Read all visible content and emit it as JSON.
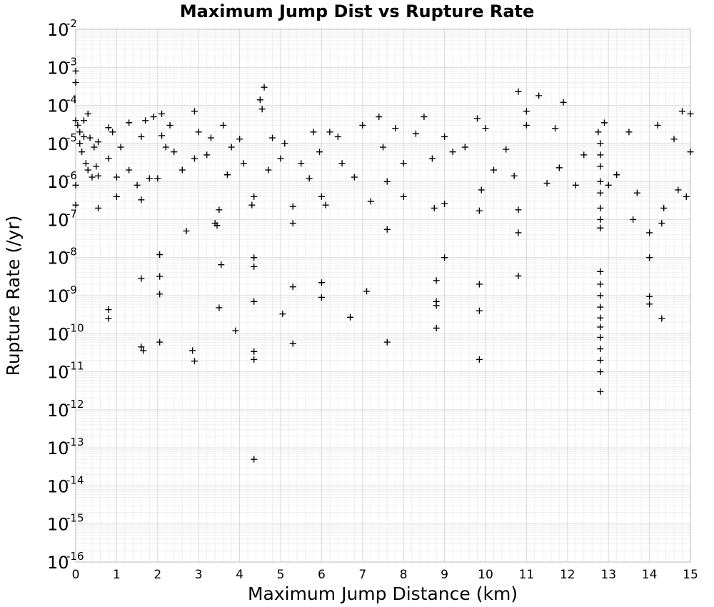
{
  "chart_data": {
    "type": "scatter",
    "title": "Maximum Jump Dist vs Rupture Rate",
    "xlabel": "Maximum Jump Distance (km)",
    "ylabel": "Rupture Rate (/yr)",
    "xlim": [
      0,
      15
    ],
    "ylim": [
      1e-16,
      0.01
    ],
    "yscale": "log",
    "grid": true,
    "marker": "plus",
    "xticks": [
      "0",
      "1",
      "2",
      "3",
      "4",
      "5",
      "6",
      "7",
      "8",
      "9",
      "10",
      "11",
      "12",
      "13",
      "14",
      "15"
    ],
    "yticks": [
      {
        "base": "10",
        "exp": "-2"
      },
      {
        "base": "10",
        "exp": "-3"
      },
      {
        "base": "10",
        "exp": "-4"
      },
      {
        "base": "10",
        "exp": "-5"
      },
      {
        "base": "10",
        "exp": "-6"
      },
      {
        "base": "10",
        "exp": "-7"
      },
      {
        "base": "10",
        "exp": "-8"
      },
      {
        "base": "10",
        "exp": "-9"
      },
      {
        "base": "10",
        "exp": "-10"
      },
      {
        "base": "10",
        "exp": "-11"
      },
      {
        "base": "10",
        "exp": "-12"
      },
      {
        "base": "10",
        "exp": "-13"
      },
      {
        "base": "10",
        "exp": "-14"
      },
      {
        "base": "10",
        "exp": "-15"
      },
      {
        "base": "10",
        "exp": "-16"
      }
    ],
    "points": [
      [
        0.0,
        0.0004
      ],
      [
        0.0,
        0.0008
      ],
      [
        0.0,
        4e-05
      ],
      [
        0.0,
        2.4e-07
      ],
      [
        0.0,
        8e-07
      ],
      [
        0.05,
        3e-05
      ],
      [
        0.1,
        2e-05
      ],
      [
        0.1,
        1e-05
      ],
      [
        0.15,
        6e-06
      ],
      [
        0.2,
        4e-05
      ],
      [
        0.2,
        1.5e-05
      ],
      [
        0.25,
        3e-06
      ],
      [
        0.3,
        6e-05
      ],
      [
        0.3,
        2e-06
      ],
      [
        0.35,
        1.4e-05
      ],
      [
        0.4,
        1.3e-06
      ],
      [
        0.45,
        8e-06
      ],
      [
        0.5,
        2.5e-06
      ],
      [
        0.55,
        1.4e-06
      ],
      [
        0.55,
        1.1e-05
      ],
      [
        0.55,
        2e-07
      ],
      [
        0.8,
        2.6e-05
      ],
      [
        0.8,
        4e-06
      ],
      [
        0.8,
        4.3e-10
      ],
      [
        0.8,
        2.5e-10
      ],
      [
        0.9,
        2e-05
      ],
      [
        1.0,
        1.3e-06
      ],
      [
        1.0,
        4e-07
      ],
      [
        1.1,
        8e-06
      ],
      [
        1.3,
        3.5e-05
      ],
      [
        1.3,
        2e-06
      ],
      [
        1.5,
        8e-07
      ],
      [
        1.6,
        1.5e-05
      ],
      [
        1.6,
        2.8e-09
      ],
      [
        1.6,
        4.5e-11
      ],
      [
        1.6,
        3.3e-07
      ],
      [
        1.65,
        3.6e-11
      ],
      [
        1.7,
        4e-05
      ],
      [
        1.8,
        1.2e-06
      ],
      [
        1.9,
        5e-05
      ],
      [
        2.0,
        1.2e-06
      ],
      [
        2.05,
        1.2e-08
      ],
      [
        2.05,
        3.2e-09
      ],
      [
        2.05,
        1.1e-09
      ],
      [
        2.05,
        6e-11
      ],
      [
        2.1,
        6e-05
      ],
      [
        2.1,
        1.6e-05
      ],
      [
        2.2,
        8e-06
      ],
      [
        2.3,
        3e-05
      ],
      [
        2.4,
        6e-06
      ],
      [
        2.6,
        2e-06
      ],
      [
        2.7,
        5e-08
      ],
      [
        2.9,
        7e-05
      ],
      [
        2.9,
        4e-06
      ],
      [
        2.85,
        3.6e-11
      ],
      [
        2.9,
        1.9e-11
      ],
      [
        3.0,
        2e-05
      ],
      [
        3.2,
        5e-06
      ],
      [
        3.3,
        1.4e-05
      ],
      [
        3.4,
        8e-08
      ],
      [
        3.45,
        7e-08
      ],
      [
        3.5,
        1.8e-07
      ],
      [
        3.55,
        6.5e-09
      ],
      [
        3.5,
        4.8e-10
      ],
      [
        3.6,
        3e-05
      ],
      [
        3.7,
        1.5e-06
      ],
      [
        3.8,
        8e-06
      ],
      [
        3.9,
        1.2e-10
      ],
      [
        4.0,
        1.3e-05
      ],
      [
        4.1,
        3e-06
      ],
      [
        4.3,
        2.4e-07
      ],
      [
        4.35,
        1e-08
      ],
      [
        4.35,
        5.8e-09
      ],
      [
        4.35,
        7e-10
      ],
      [
        4.35,
        3.4e-11
      ],
      [
        4.35,
        2.1e-11
      ],
      [
        4.35,
        5e-14
      ],
      [
        4.35,
        4e-07
      ],
      [
        4.5,
        0.00014
      ],
      [
        4.55,
        8e-05
      ],
      [
        4.6,
        0.0003
      ],
      [
        4.7,
        2e-06
      ],
      [
        4.8,
        1.4e-05
      ],
      [
        5.0,
        4e-06
      ],
      [
        5.05,
        3.3e-10
      ],
      [
        5.1,
        1e-05
      ],
      [
        5.3,
        2.2e-07
      ],
      [
        5.3,
        8e-08
      ],
      [
        5.3,
        1.7e-09
      ],
      [
        5.3,
        5.5e-11
      ],
      [
        5.5,
        3e-06
      ],
      [
        5.7,
        1.2e-06
      ],
      [
        5.8,
        2e-05
      ],
      [
        5.95,
        6e-06
      ],
      [
        6.0,
        2.2e-09
      ],
      [
        6.0,
        9e-10
      ],
      [
        6.0,
        4e-07
      ],
      [
        6.1,
        2.4e-07
      ],
      [
        6.2,
        2e-05
      ],
      [
        6.4,
        1.5e-05
      ],
      [
        6.5,
        3e-06
      ],
      [
        6.7,
        2.7e-10
      ],
      [
        6.8,
        1.3e-06
      ],
      [
        7.0,
        3e-05
      ],
      [
        7.1,
        1.3e-09
      ],
      [
        7.2,
        3e-07
      ],
      [
        7.4,
        5e-05
      ],
      [
        7.5,
        8e-06
      ],
      [
        7.6,
        5.5e-08
      ],
      [
        7.6,
        6e-11
      ],
      [
        7.6,
        1e-06
      ],
      [
        7.8,
        2.5e-05
      ],
      [
        8.0,
        4e-07
      ],
      [
        8.0,
        3e-06
      ],
      [
        8.3,
        1.8e-05
      ],
      [
        8.5,
        5e-05
      ],
      [
        8.7,
        4e-06
      ],
      [
        8.75,
        2e-07
      ],
      [
        8.8,
        2.5e-09
      ],
      [
        8.8,
        7e-10
      ],
      [
        8.8,
        5.5e-10
      ],
      [
        8.8,
        1.4e-10
      ],
      [
        9.0,
        1e-08
      ],
      [
        9.0,
        2.6e-07
      ],
      [
        9.0,
        1.5e-05
      ],
      [
        9.2,
        6e-06
      ],
      [
        9.5,
        8e-06
      ],
      [
        9.8,
        4.5e-05
      ],
      [
        9.85,
        2e-09
      ],
      [
        9.85,
        4e-10
      ],
      [
        9.85,
        2.1e-11
      ],
      [
        9.85,
        1.7e-07
      ],
      [
        9.9,
        6e-07
      ],
      [
        10.0,
        2.5e-05
      ],
      [
        10.2,
        2e-06
      ],
      [
        10.5,
        7e-06
      ],
      [
        10.7,
        1.4e-06
      ],
      [
        10.8,
        0.00023
      ],
      [
        10.8,
        3.3e-09
      ],
      [
        10.8,
        4.5e-08
      ],
      [
        10.8,
        1.8e-07
      ],
      [
        11.0,
        7e-05
      ],
      [
        11.0,
        3e-05
      ],
      [
        11.3,
        0.00018
      ],
      [
        11.5,
        9e-07
      ],
      [
        11.7,
        2.5e-05
      ],
      [
        11.9,
        0.00012
      ],
      [
        11.8,
        2.3e-06
      ],
      [
        12.2,
        8e-07
      ],
      [
        12.4,
        5e-06
      ],
      [
        12.75,
        2e-05
      ],
      [
        12.8,
        1e-05
      ],
      [
        12.8,
        5e-06
      ],
      [
        12.8,
        2.5e-06
      ],
      [
        12.8,
        1e-06
      ],
      [
        12.8,
        5e-07
      ],
      [
        12.8,
        2e-07
      ],
      [
        12.8,
        1e-07
      ],
      [
        12.8,
        6e-08
      ],
      [
        12.8,
        4.3e-09
      ],
      [
        12.8,
        2e-09
      ],
      [
        12.8,
        1e-09
      ],
      [
        12.8,
        5e-10
      ],
      [
        12.8,
        2.6e-10
      ],
      [
        12.8,
        1.5e-10
      ],
      [
        12.8,
        8e-11
      ],
      [
        12.8,
        4e-11
      ],
      [
        12.8,
        2e-11
      ],
      [
        12.8,
        1e-11
      ],
      [
        12.8,
        3e-12
      ],
      [
        12.9,
        3.5e-05
      ],
      [
        13.0,
        8e-07
      ],
      [
        13.2,
        1.5e-06
      ],
      [
        13.5,
        2e-05
      ],
      [
        13.6,
        1e-07
      ],
      [
        13.7,
        5e-07
      ],
      [
        14.0,
        4.5e-08
      ],
      [
        14.0,
        1e-08
      ],
      [
        14.0,
        9.5e-10
      ],
      [
        14.0,
        6e-10
      ],
      [
        14.2,
        3e-05
      ],
      [
        14.3,
        2.5e-10
      ],
      [
        14.3,
        8e-08
      ],
      [
        14.35,
        2e-07
      ],
      [
        14.6,
        1.3e-05
      ],
      [
        14.7,
        6e-07
      ],
      [
        14.8,
        7e-05
      ],
      [
        14.9,
        4e-07
      ],
      [
        15.0,
        6e-05
      ],
      [
        15.0,
        6e-06
      ]
    ]
  }
}
